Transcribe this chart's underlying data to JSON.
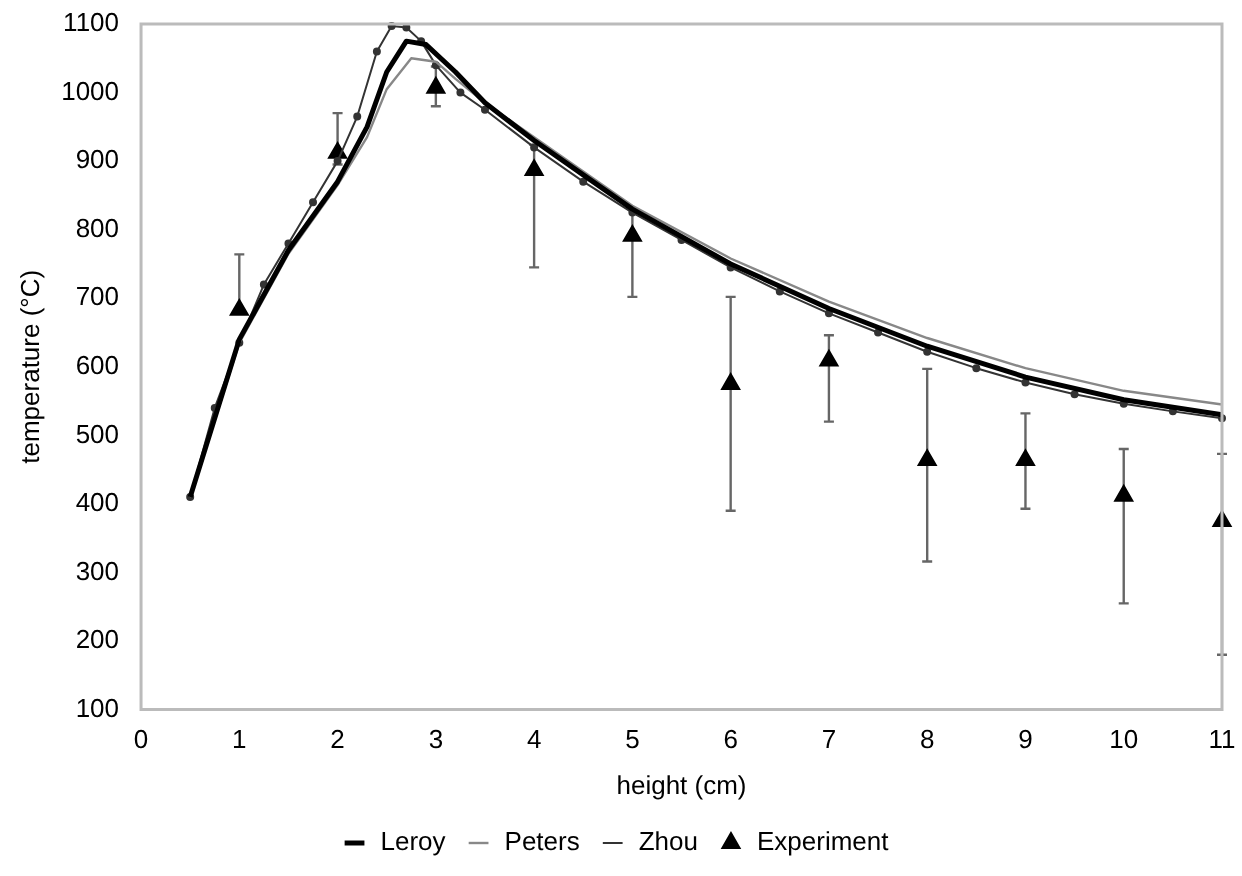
{
  "chart_data": {
    "type": "line",
    "xlabel": "height (cm)",
    "ylabel": "temperature (°C)",
    "xlim": [
      0,
      11
    ],
    "xticks": [
      0,
      1,
      2,
      3,
      4,
      5,
      6,
      7,
      8,
      9,
      10,
      11
    ],
    "ylim": [
      100,
      1100
    ],
    "yticks": [
      100,
      200,
      300,
      400,
      500,
      600,
      700,
      800,
      900,
      1000,
      1100
    ],
    "grid": false,
    "legend": "bottom",
    "series": [
      {
        "name": "Leroy",
        "color": "#000000",
        "marker": "none",
        "x": [
          0.5,
          1,
          1.5,
          2,
          2.3,
          2.5,
          2.7,
          2.9,
          3.2,
          3.5,
          4,
          4.5,
          5,
          6,
          7,
          8,
          9,
          10,
          11
        ],
        "values": [
          410,
          640,
          770,
          870,
          950,
          1030,
          1075,
          1070,
          1030,
          985,
          930,
          880,
          830,
          750,
          685,
          630,
          585,
          552,
          530
        ]
      },
      {
        "name": "Peters",
        "color": "#888888",
        "marker": "none",
        "x": [
          0.5,
          1,
          1.5,
          2,
          2.3,
          2.5,
          2.75,
          3,
          3.2,
          3.5,
          4,
          4.5,
          5,
          6,
          7,
          8,
          9,
          10,
          11
        ],
        "values": [
          410,
          635,
          765,
          865,
          935,
          1005,
          1050,
          1045,
          1020,
          985,
          935,
          885,
          835,
          758,
          695,
          642,
          598,
          565,
          545
        ]
      },
      {
        "name": "Zhou",
        "color": "#333333",
        "marker": "circle",
        "x": [
          0.5,
          0.75,
          1,
          1.25,
          1.5,
          1.75,
          2,
          2.2,
          2.4,
          2.55,
          2.7,
          2.85,
          3,
          3.25,
          3.5,
          4,
          4.5,
          5,
          5.5,
          6,
          6.5,
          7,
          7.5,
          8,
          8.5,
          9,
          9.5,
          10,
          10.5,
          11
        ],
        "values": [
          410,
          540,
          635,
          720,
          780,
          840,
          900,
          965,
          1060,
          1097,
          1095,
          1075,
          1040,
          1000,
          975,
          920,
          870,
          825,
          785,
          745,
          710,
          678,
          650,
          622,
          598,
          577,
          560,
          546,
          535,
          525
        ]
      },
      {
        "name": "Experiment",
        "type": "scatter",
        "color": "#000000",
        "marker": "triangle",
        "x": [
          1,
          2,
          3,
          4,
          5,
          6,
          7,
          8,
          9,
          10,
          11
        ],
        "values": [
          683,
          912,
          1007,
          887,
          791,
          575,
          609,
          464,
          464,
          412,
          375
        ],
        "errors": [
          [
            683,
            764
          ],
          [
            895,
            970
          ],
          [
            980,
            1038
          ],
          [
            745,
            924
          ],
          [
            702,
            830
          ],
          [
            390,
            702
          ],
          [
            520,
            646
          ],
          [
            316,
            597
          ],
          [
            393,
            532
          ],
          [
            255,
            480
          ],
          [
            180,
            473
          ]
        ]
      }
    ]
  }
}
